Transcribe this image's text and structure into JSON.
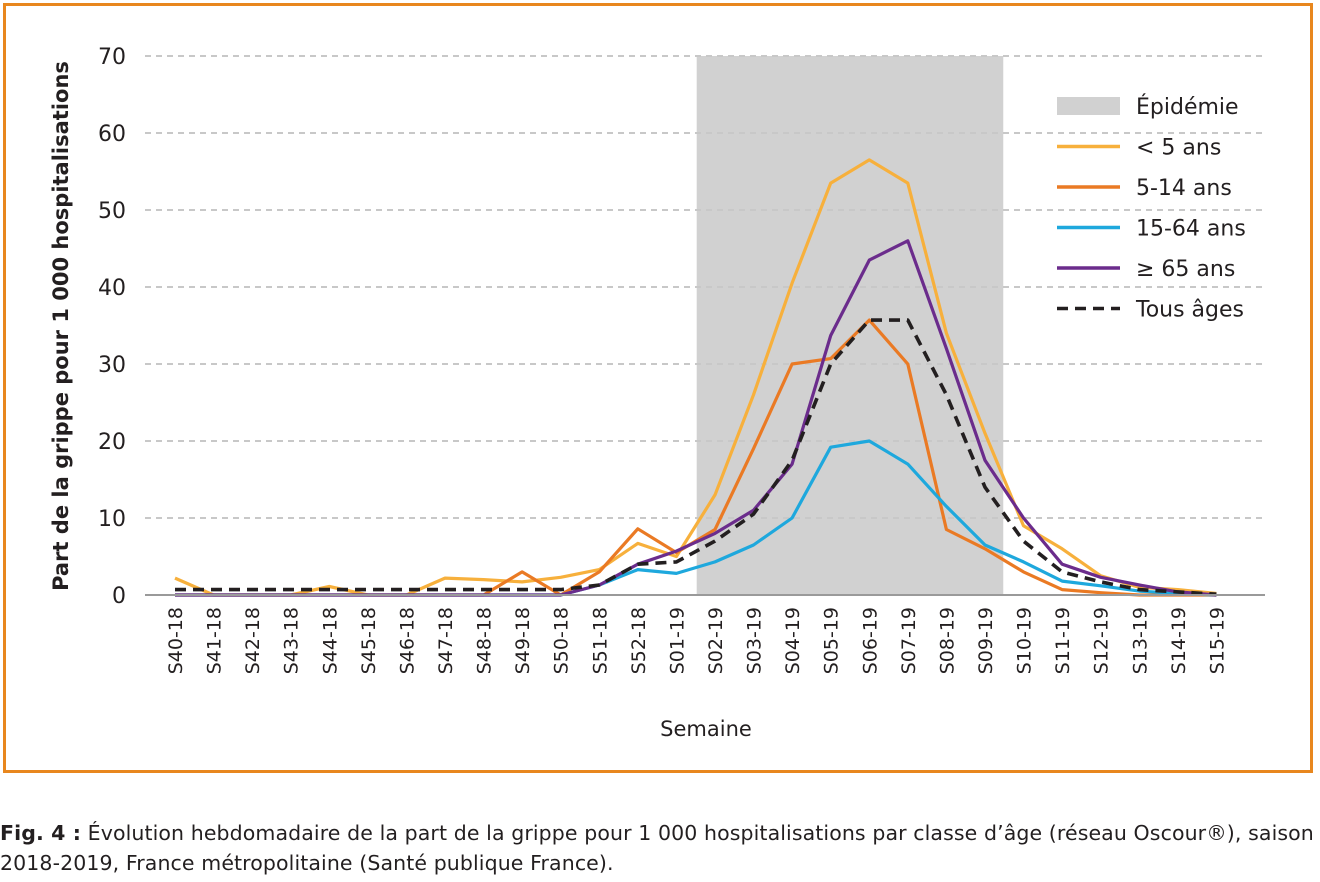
{
  "chart_data": {
    "type": "line",
    "ylabel": "Part de la grippe pour 1 000 hospitalisations",
    "xlabel": "Semaine",
    "ylim": [
      0,
      70
    ],
    "yticks": [
      0,
      10,
      20,
      30,
      40,
      50,
      60,
      70
    ],
    "grid": "horizontal dashed",
    "legend_position": "top-right",
    "categories": [
      "S40-18",
      "S41-18",
      "S42-18",
      "S43-18",
      "S44-18",
      "S45-18",
      "S46-18",
      "S47-18",
      "S48-18",
      "S49-18",
      "S50-18",
      "S51-18",
      "S52-18",
      "S01-19",
      "S02-19",
      "S03-19",
      "S04-19",
      "S05-19",
      "S06-19",
      "S07-19",
      "S08-19",
      "S09-19",
      "S10-19",
      "S11-19",
      "S12-19",
      "S13-19",
      "S14-19",
      "S15-19"
    ],
    "shaded_period": {
      "name": "Épidémie",
      "from": "S02-19",
      "to": "S09-19",
      "color": "#d1d1d1"
    },
    "series": [
      {
        "name": "< 5 ans",
        "color": "#f7b03c",
        "style": "solid",
        "values": [
          2.2,
          0,
          0,
          0,
          1.1,
          0,
          0,
          2.2,
          2,
          1.7,
          2.3,
          3.3,
          6.7,
          5,
          13,
          26,
          40.5,
          53.5,
          56.5,
          53.5,
          34,
          21,
          9,
          6,
          2.5,
          1,
          0.7,
          0.2
        ]
      },
      {
        "name": "5-14 ans",
        "color": "#ea7a24",
        "style": "solid",
        "values": [
          0,
          0,
          0,
          0,
          0,
          0,
          0,
          0,
          0,
          3,
          0,
          3,
          8.6,
          5.5,
          8.5,
          19,
          30,
          30.7,
          35.7,
          30,
          8.5,
          6,
          3,
          0.7,
          0.3,
          0,
          0,
          0
        ]
      },
      {
        "name": "15-64 ans",
        "color": "#1ea8dd",
        "style": "solid",
        "values": [
          0,
          0,
          0,
          0,
          0,
          0,
          0,
          0,
          0,
          0,
          0,
          1.3,
          3.3,
          2.8,
          4.3,
          6.5,
          10,
          19.2,
          20,
          17,
          11.5,
          6.5,
          4.3,
          1.8,
          1.2,
          0.5,
          0.2,
          0
        ]
      },
      {
        "name": "≥ 65 ans",
        "color": "#6b2c8c",
        "style": "solid",
        "values": [
          0,
          0,
          0,
          0,
          0,
          0,
          0,
          0,
          0,
          0,
          0,
          1.3,
          4,
          5.7,
          8,
          11,
          17,
          33.7,
          43.5,
          46,
          32,
          17.5,
          10,
          4,
          2.3,
          1.3,
          0.4,
          0
        ]
      },
      {
        "name": "Tous âges",
        "color": "#231f20",
        "style": "dashed",
        "values": [
          0.7,
          0.7,
          0.7,
          0.7,
          0.7,
          0.7,
          0.7,
          0.7,
          0.7,
          0.7,
          0.7,
          1.3,
          4,
          4.3,
          7,
          10.5,
          17.5,
          30,
          35.7,
          35.7,
          26,
          14,
          7,
          3,
          1.7,
          0.7,
          0.4,
          0.1
        ]
      }
    ]
  },
  "caption": {
    "label": "Fig. 4 :",
    "text": "Évolution hebdomadaire de la part de la grippe pour 1 000 hospitalisations par classe d’âge (réseau Oscour®), saison 2018-2019, France métropolitaine (Santé publique France)."
  }
}
